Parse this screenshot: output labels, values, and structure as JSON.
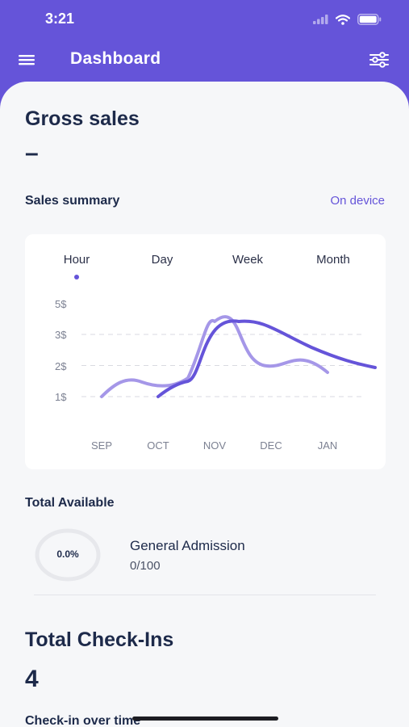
{
  "status_bar": {
    "time": "3:21"
  },
  "app_bar": {
    "title": "Dashboard"
  },
  "gross_sales": {
    "heading": "Gross sales",
    "value": "–"
  },
  "sales_summary": {
    "label": "Sales summary",
    "scope_link": "On device",
    "tabs": [
      "Hour",
      "Day",
      "Week",
      "Month"
    ],
    "selected_tab": "Hour"
  },
  "chart_data": {
    "type": "line",
    "x": [
      "SEP",
      "OCT",
      "NOV",
      "DEC",
      "JAN"
    ],
    "y_ticks": [
      "5$",
      "3$",
      "2$",
      "1$"
    ],
    "grid": "dashed horizontal at 3$, 2$, 1$",
    "series": [
      {
        "values": [
          1.0,
          1.5,
          3.4,
          2.0,
          1.8
        ],
        "color": "#a597e8"
      },
      {
        "values": [
          null,
          1.0,
          3.5,
          3.0,
          2.0
        ],
        "color": "#6554d9"
      }
    ]
  },
  "total_available": {
    "heading": "Total Available",
    "percent": "0.0%",
    "ticket_name": "General Admission",
    "ticket_count": "0/100"
  },
  "check_ins": {
    "heading": "Total Check-Ins",
    "value": "4",
    "subheading": "Check-in over time"
  },
  "icons": [
    "menu-icon",
    "filter-icon",
    "cellular-signal-icon",
    "wifi-icon",
    "battery-icon"
  ],
  "colors": {
    "primary": "#6554d9",
    "primary_light": "#a597e8",
    "text": "#1d2a4a",
    "background": "#f6f7f9"
  }
}
